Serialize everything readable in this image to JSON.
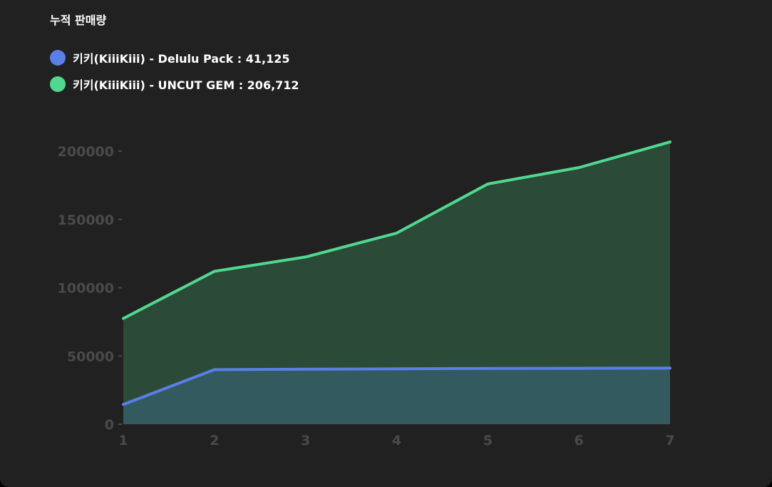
{
  "chart_data": {
    "type": "area",
    "title": "누적 판매량",
    "x": [
      1,
      2,
      3,
      4,
      5,
      6,
      7
    ],
    "ylim": [
      0,
      220000
    ],
    "yticks": [
      0,
      50000,
      100000,
      150000,
      200000
    ],
    "xlabel": "",
    "ylabel": "",
    "grid": false,
    "legend_position": "top-left",
    "series": [
      {
        "name": "키키(KiiiKiii) - Delulu Pack",
        "legend_label": "키키(KiiiKiii) - Delulu Pack : 41,125",
        "values": [
          14500,
          40000,
          40300,
          40600,
          40900,
          41000,
          41125
        ],
        "color": "#5b7fe8",
        "fill": "#325a5f"
      },
      {
        "name": "키키(KiiiKiii) - UNCUT GEM",
        "legend_label": "키키(KiiiKiii) - UNCUT GEM : 206,712",
        "values": [
          77500,
          112000,
          122500,
          140000,
          176000,
          188000,
          206712
        ],
        "color": "#50d890",
        "fill": "#2b4a38"
      }
    ]
  },
  "colors": {
    "background": "#212121",
    "text": "#ffffff",
    "axis_text": "#4a4a4a"
  }
}
